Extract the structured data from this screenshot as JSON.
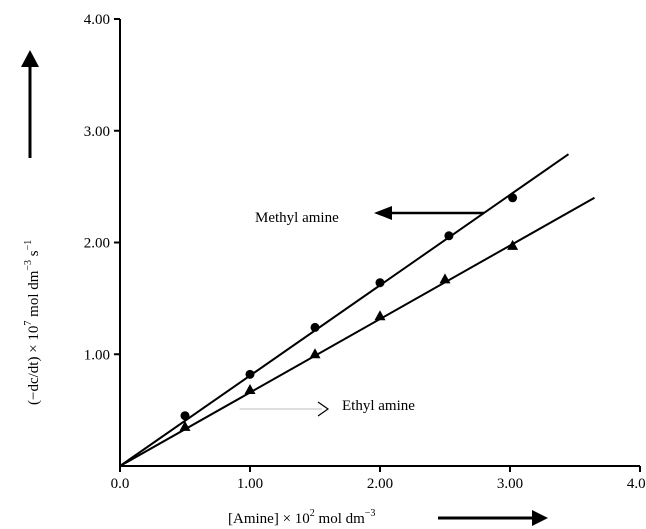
{
  "chart_data": {
    "type": "scatter",
    "title": "",
    "xlabel": {
      "main": "[Amine] × 10",
      "exp": "2",
      "unit": " mol dm",
      "unit_exp": "−3"
    },
    "ylabel": {
      "main": "(−dc/dt) × 10",
      "exp": "7",
      "unit": " mol dm",
      "unit_exp": "−3",
      "tail": " s",
      "tail_exp": "−1"
    },
    "xlim": [
      0,
      4.0
    ],
    "ylim": [
      0,
      4.0
    ],
    "x_ticks": [
      {
        "value": 0,
        "label": "0.0"
      },
      {
        "value": 1,
        "label": "1.00"
      },
      {
        "value": 2,
        "label": "2.00"
      },
      {
        "value": 3,
        "label": "3.00"
      },
      {
        "value": 4,
        "label": "4.00"
      }
    ],
    "y_ticks": [
      {
        "value": 1,
        "label": "1.00"
      },
      {
        "value": 2,
        "label": "2.00"
      },
      {
        "value": 3,
        "label": "3.00"
      },
      {
        "value": 4,
        "label": "4.00"
      }
    ],
    "grid": false,
    "series": [
      {
        "name": "Methyl amine",
        "marker": "circle",
        "x": [
          0.5,
          1.0,
          1.5,
          2.0,
          2.53,
          3.02
        ],
        "y": [
          0.45,
          0.82,
          1.24,
          1.64,
          2.06,
          2.4
        ],
        "fit_line": {
          "x": [
            0,
            3.45
          ],
          "y": [
            0,
            2.79
          ]
        }
      },
      {
        "name": "Ethyl amine",
        "marker": "triangle",
        "x": [
          0.5,
          1.0,
          1.5,
          2.0,
          2.5,
          3.02
        ],
        "y": [
          0.35,
          0.68,
          1.0,
          1.34,
          1.67,
          1.97
        ],
        "fit_line": {
          "x": [
            0,
            3.65
          ],
          "y": [
            0,
            2.4
          ]
        }
      }
    ],
    "annotations": [
      {
        "text": "Methyl amine",
        "series": 0
      },
      {
        "text": "Ethyl amine",
        "series": 1
      }
    ]
  }
}
